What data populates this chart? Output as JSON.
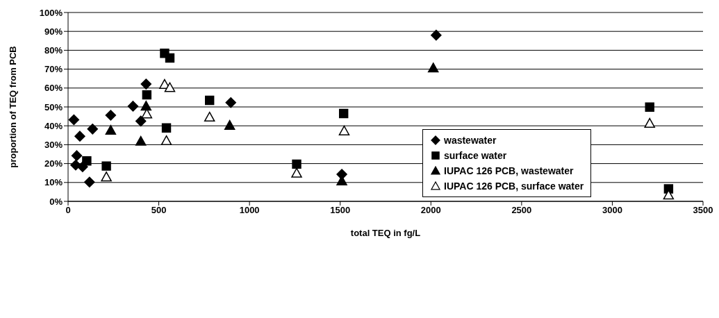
{
  "chart_data": {
    "type": "scatter",
    "xlabel": "total TEQ in fg/L",
    "ylabel": "proportion of TEQ from PCB",
    "xlim": [
      0,
      3500
    ],
    "xticks": [
      0,
      500,
      1000,
      1500,
      2000,
      2500,
      3000,
      3500
    ],
    "ylim": [
      0,
      100
    ],
    "yticks": [
      {
        "value": 0,
        "label": "0%"
      },
      {
        "value": 10,
        "label": "10%"
      },
      {
        "value": 20,
        "label": "20%"
      },
      {
        "value": 30,
        "label": "30%"
      },
      {
        "value": 40,
        "label": "40%"
      },
      {
        "value": 50,
        "label": "50%"
      },
      {
        "value": 60,
        "label": "60%"
      },
      {
        "value": 70,
        "label": "70%"
      },
      {
        "value": 80,
        "label": "80%"
      },
      {
        "value": 90,
        "label": "90%"
      },
      {
        "value": 100,
        "label": "100%"
      }
    ],
    "grid": "y",
    "legend": "right",
    "series": [
      {
        "name": "wastewater",
        "color": "#000000",
        "marker": "diamond",
        "x": [
          32,
          65,
          48,
          42,
          80,
          135,
          118,
          235,
          358,
          401,
          430,
          897,
          1509,
          2029
        ],
        "values": [
          43.2,
          34.5,
          24.2,
          19.2,
          18.3,
          38.3,
          10.2,
          45.6,
          50.4,
          42.5,
          62.1,
          52.3,
          14.3,
          88
        ]
      },
      {
        "name": "surface water",
        "color": "#000000",
        "marker": "square",
        "x": [
          532,
          561,
          434,
          542,
          103,
          211,
          780,
          1519,
          1260,
          3206,
          3310
        ],
        "values": [
          78.4,
          75.9,
          56.4,
          38.9,
          21.4,
          18.7,
          53.5,
          46.5,
          19.7,
          49.9,
          6.6
        ]
      },
      {
        "name": "IUPAC 126 PCB, wastewater",
        "color": "#000000",
        "marker": "triangle",
        "x": [
          235,
          430,
          401,
          891,
          2013,
          1509
        ],
        "values": [
          37.6,
          50.4,
          31.8,
          40.2,
          70.6,
          10.8
        ]
      },
      {
        "name": "IUPAC 126 PCB, surface water",
        "color": "#ffffff",
        "marker": "triangle",
        "x": [
          211,
          434,
          532,
          561,
          542,
          780,
          1522,
          1260,
          3206,
          3310
        ],
        "values": [
          12.9,
          46.3,
          61.9,
          60.2,
          32.1,
          44.6,
          37.3,
          14.9,
          41.3,
          3.3
        ]
      }
    ]
  }
}
